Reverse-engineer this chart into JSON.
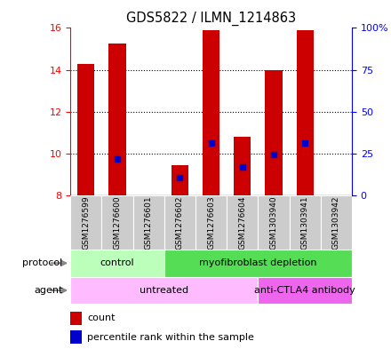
{
  "title": "GDS5822 / ILMN_1214863",
  "samples": [
    "GSM1276599",
    "GSM1276600",
    "GSM1276601",
    "GSM1276602",
    "GSM1276603",
    "GSM1276604",
    "GSM1303940",
    "GSM1303941",
    "GSM1303942"
  ],
  "counts": [
    14.3,
    15.25,
    8.0,
    9.45,
    15.9,
    10.8,
    14.0,
    15.9,
    8.0
  ],
  "percentiles": [
    null,
    9.75,
    null,
    8.85,
    10.5,
    9.35,
    9.95,
    10.5,
    null
  ],
  "ylim_left": [
    8,
    16
  ],
  "ylim_right": [
    0,
    100
  ],
  "yticks_left": [
    8,
    10,
    12,
    14,
    16
  ],
  "yticks_right": [
    0,
    25,
    50,
    75,
    100
  ],
  "ytick_right_labels": [
    "0",
    "25",
    "50",
    "75",
    "100%"
  ],
  "bar_color": "#cc0000",
  "percentile_color": "#0000cc",
  "bar_width": 0.55,
  "protocol_groups": [
    {
      "label": "control",
      "start": 0,
      "end": 3,
      "color": "#bbffbb"
    },
    {
      "label": "myofibroblast depletion",
      "start": 3,
      "end": 9,
      "color": "#55dd55"
    }
  ],
  "agent_groups": [
    {
      "label": "untreated",
      "start": 0,
      "end": 6,
      "color": "#ffbbff"
    },
    {
      "label": "anti-CTLA4 antibody",
      "start": 6,
      "end": 9,
      "color": "#ee66ee"
    }
  ],
  "legend_count_label": "count",
  "legend_percentile_label": "percentile rank within the sample",
  "background_color": "#ffffff",
  "plot_bg_color": "#ffffff",
  "grid_dotted_yticks": [
    10,
    12,
    14
  ],
  "sample_box_color": "#cccccc",
  "protocol_label": "protocol",
  "agent_label": "agent"
}
